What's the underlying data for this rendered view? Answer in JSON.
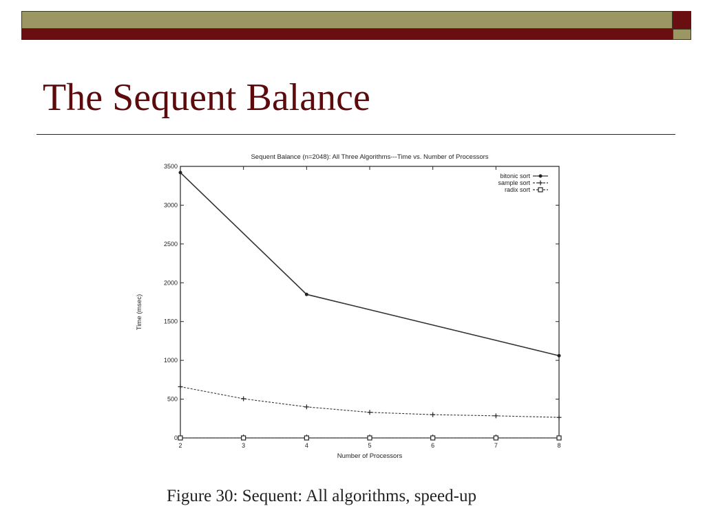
{
  "slide": {
    "title": "The Sequent Balance",
    "caption": "Figure 30:  Sequent: All algorithms, speed-up"
  },
  "colors": {
    "olive": "#9b9662",
    "maroon": "#6b0e12",
    "title": "#5c0a0c"
  },
  "chart_data": {
    "type": "line",
    "title": "Sequent Balance (n=2048): All Three Algorithms---Time vs. Number of Processors",
    "xlabel": "Number of Processors",
    "ylabel": "Time (msec)",
    "xlim": [
      2,
      8
    ],
    "ylim": [
      0,
      3500
    ],
    "xticks": [
      2,
      3,
      4,
      5,
      6,
      7,
      8
    ],
    "yticks": [
      0,
      500,
      1000,
      1500,
      2000,
      2500,
      3000,
      3500
    ],
    "legend_position": "top-right",
    "grid": false,
    "series": [
      {
        "name": "bitonic sort",
        "marker": "dot",
        "line": "solid",
        "x": [
          2,
          4,
          8
        ],
        "y": [
          3420,
          1850,
          1060
        ]
      },
      {
        "name": "sample sort",
        "marker": "plus",
        "line": "dashed",
        "x": [
          2,
          3,
          4,
          5,
          6,
          7,
          8
        ],
        "y": [
          660,
          505,
          400,
          330,
          300,
          285,
          265
        ]
      },
      {
        "name": "radix sort",
        "marker": "square",
        "line": "dashed",
        "x": [
          2,
          3,
          4,
          5,
          6,
          7,
          8
        ],
        "y": [
          0,
          0,
          0,
          0,
          0,
          0,
          0
        ]
      }
    ]
  }
}
